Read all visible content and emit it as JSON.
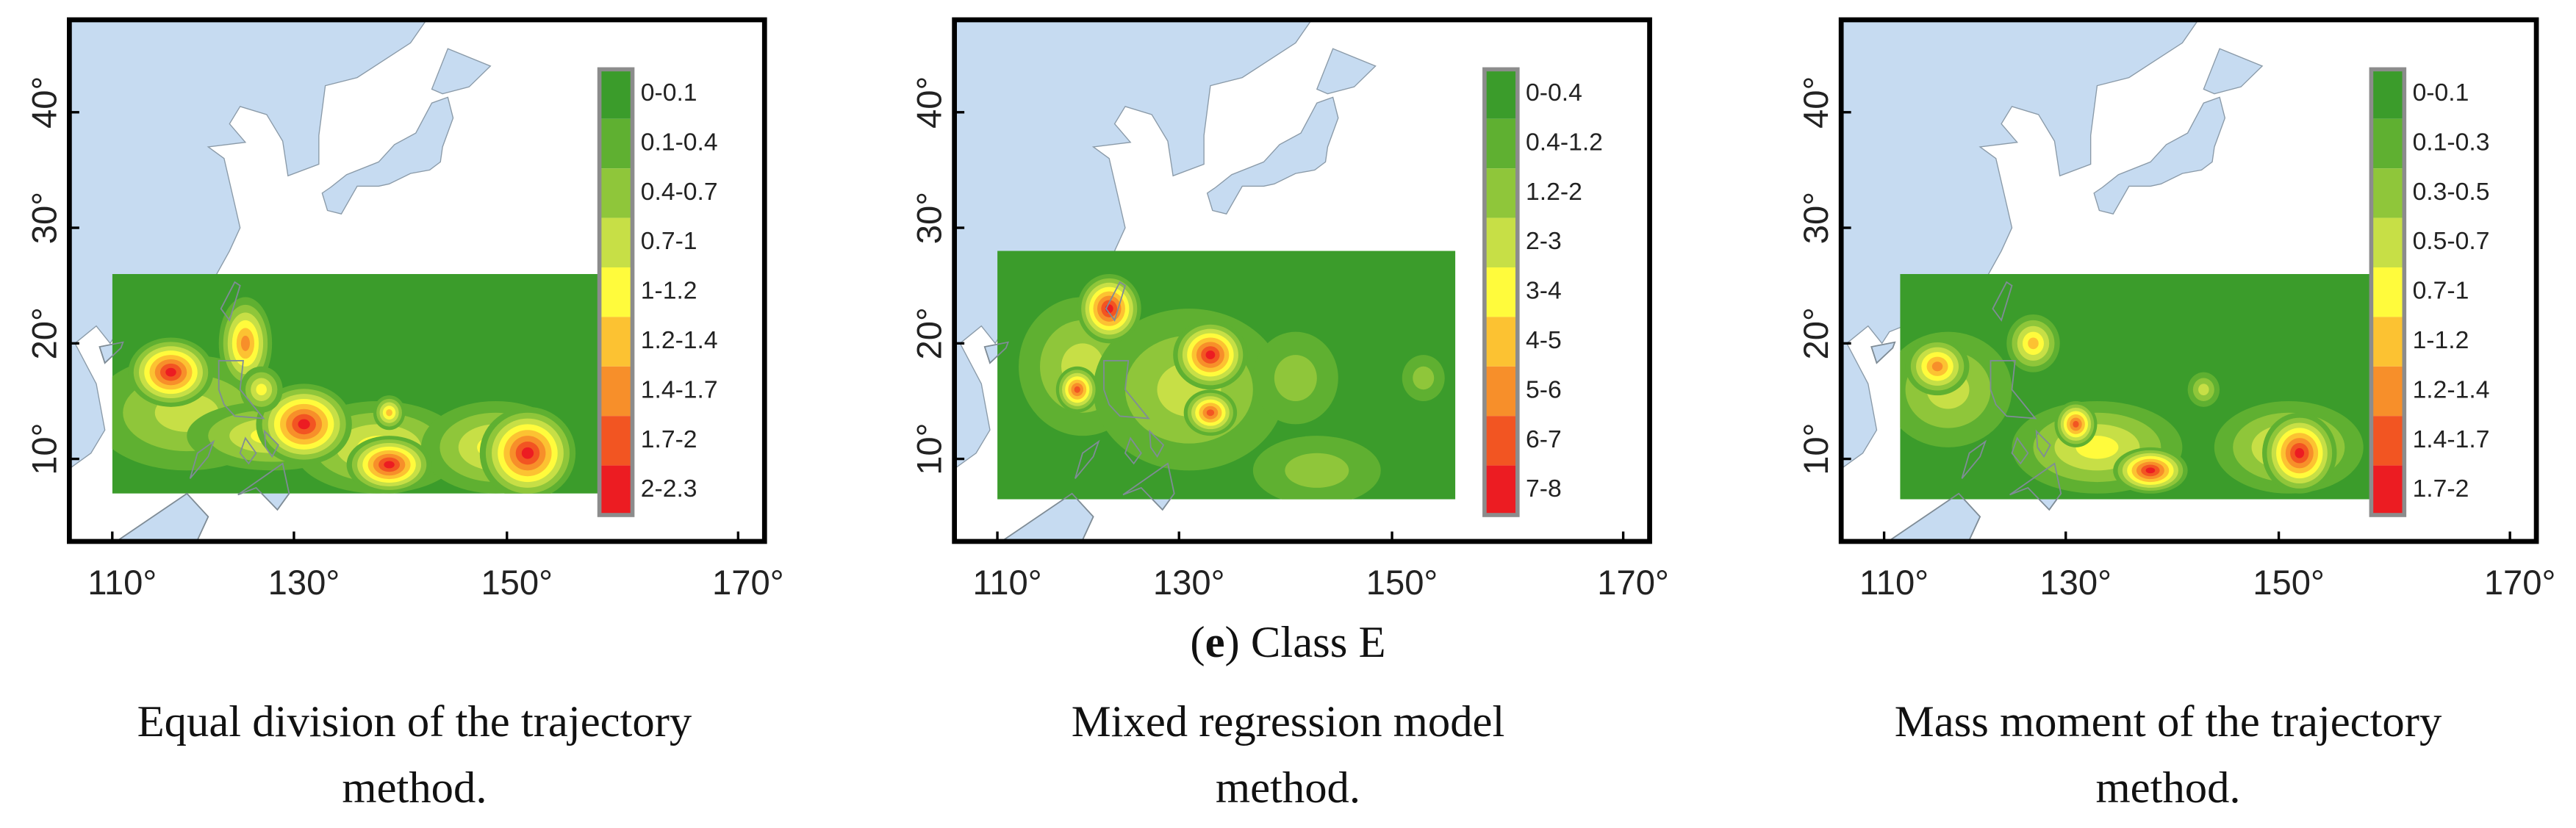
{
  "caption": {
    "parts": [
      "(",
      "e",
      ") Class E"
    ]
  },
  "x_tick_labels": [
    "110°",
    "130°",
    "150°",
    "170°"
  ],
  "y_tick_labels": [
    "10°",
    "20°",
    "30°",
    "40°"
  ],
  "panels": [
    {
      "title_lines": [
        "Equal division of the trajectory",
        "method."
      ],
      "legend": [
        {
          "label": "0-0.1",
          "color": "#3b9c2b"
        },
        {
          "label": "0.1-0.4",
          "color": "#5fb031"
        },
        {
          "label": "0.4-0.7",
          "color": "#8fc63a"
        },
        {
          "label": "0.7-1",
          "color": "#c7df46"
        },
        {
          "label": "1-1.2",
          "color": "#fffb3c"
        },
        {
          "label": "1.2-1.4",
          "color": "#fcc232"
        },
        {
          "label": "1.4-1.7",
          "color": "#f78f2a"
        },
        {
          "label": "1.7-2",
          "color": "#f25522"
        },
        {
          "label": "2-2.3",
          "color": "#ec1c22"
        }
      ]
    },
    {
      "title_lines": [
        "Mixed regression model",
        "method."
      ],
      "legend": [
        {
          "label": "0-0.4",
          "color": "#3b9c2b"
        },
        {
          "label": "0.4-1.2",
          "color": "#5fb031"
        },
        {
          "label": "1.2-2",
          "color": "#8fc63a"
        },
        {
          "label": "2-3",
          "color": "#c7df46"
        },
        {
          "label": "3-4",
          "color": "#fffb3c"
        },
        {
          "label": "4-5",
          "color": "#fcc232"
        },
        {
          "label": "5-6",
          "color": "#f78f2a"
        },
        {
          "label": "6-7",
          "color": "#f25522"
        },
        {
          "label": "7-8",
          "color": "#ec1c22"
        }
      ]
    },
    {
      "title_lines": [
        "Mass moment of the trajectory",
        "method."
      ],
      "legend": [
        {
          "label": "0-0.1",
          "color": "#3b9c2b"
        },
        {
          "label": "0.1-0.3",
          "color": "#5fb031"
        },
        {
          "label": "0.3-0.5",
          "color": "#8fc63a"
        },
        {
          "label": "0.5-0.7",
          "color": "#c7df46"
        },
        {
          "label": "0.7-1",
          "color": "#fffb3c"
        },
        {
          "label": "1-1.2",
          "color": "#fcc232"
        },
        {
          "label": "1.2-1.4",
          "color": "#f78f2a"
        },
        {
          "label": "1.4-1.7",
          "color": "#f25522"
        },
        {
          "label": "1.7-2",
          "color": "#ec1c22"
        }
      ]
    }
  ]
}
